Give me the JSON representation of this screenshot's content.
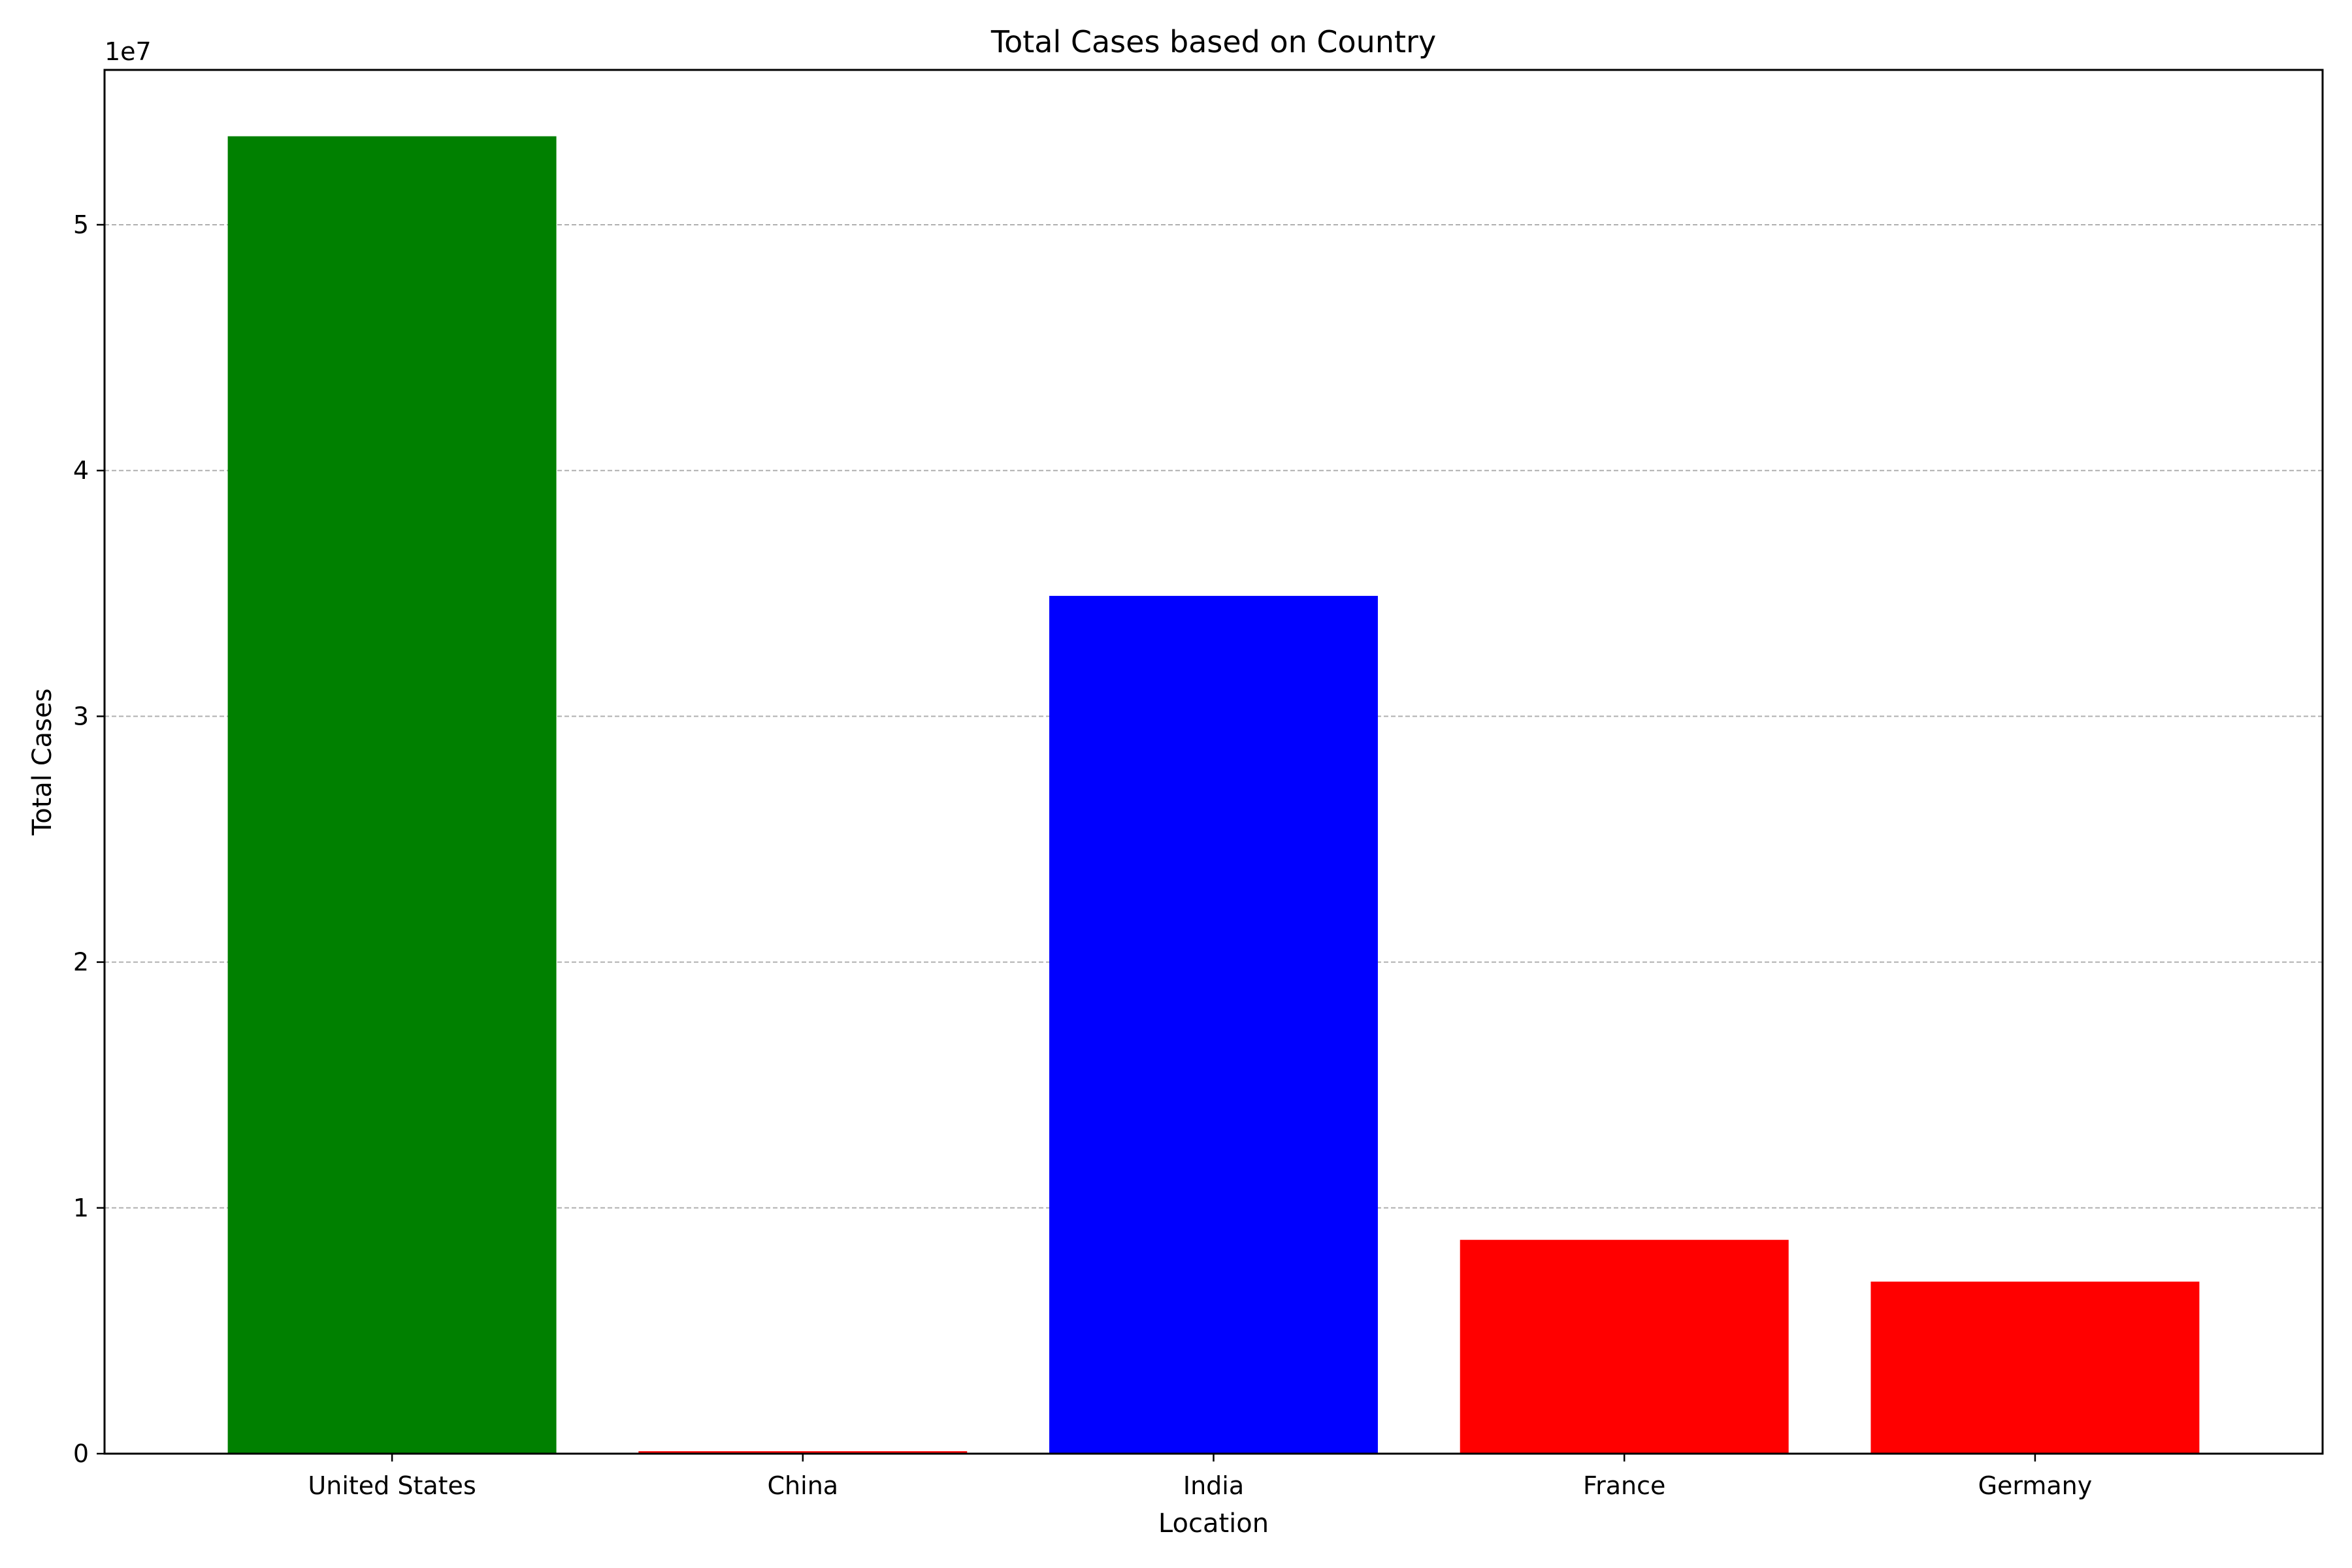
{
  "chart_data": {
    "type": "bar",
    "title": "Total Cases based on Country",
    "xlabel": "Location",
    "ylabel": "Total Cases",
    "y_offset_label": "1e7",
    "categories": [
      "United States",
      "China",
      "India",
      "France",
      "Germany"
    ],
    "values": [
      53600000,
      100000,
      34900000,
      8700000,
      7000000
    ],
    "colors": [
      "#008000",
      "#ff0000",
      "#0000ff",
      "#ff0000",
      "#ff0000"
    ],
    "ylim": [
      0,
      56300000
    ],
    "yticks": [
      0,
      10000000,
      20000000,
      30000000,
      40000000,
      50000000
    ],
    "ytick_labels": [
      "0",
      "1",
      "2",
      "3",
      "4",
      "5"
    ],
    "grid": "y-dashed"
  }
}
